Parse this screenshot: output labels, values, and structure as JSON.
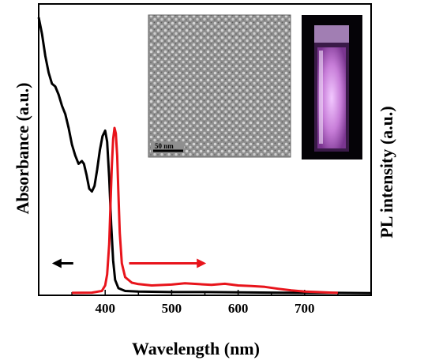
{
  "chart_data": {
    "type": "line",
    "xlabel": "Wavelength (nm)",
    "ylabel_left": "Absorbance (a.u.)",
    "ylabel_right": "PL intensity (a.u.)",
    "xlim": [
      300,
      800
    ],
    "ylim": [
      0,
      1
    ],
    "x_ticks": [
      400,
      500,
      600,
      700
    ],
    "colors": {
      "absorbance": "#000000",
      "pl": "#e8141b"
    },
    "series": [
      {
        "key": "absorbance",
        "color": "#000000",
        "points": [
          [
            300,
            1.0
          ],
          [
            305,
            0.94
          ],
          [
            310,
            0.86
          ],
          [
            315,
            0.8
          ],
          [
            320,
            0.76
          ],
          [
            325,
            0.75
          ],
          [
            330,
            0.72
          ],
          [
            335,
            0.68
          ],
          [
            340,
            0.65
          ],
          [
            345,
            0.6
          ],
          [
            350,
            0.54
          ],
          [
            355,
            0.5
          ],
          [
            360,
            0.47
          ],
          [
            365,
            0.48
          ],
          [
            368,
            0.47
          ],
          [
            372,
            0.43
          ],
          [
            376,
            0.38
          ],
          [
            380,
            0.37
          ],
          [
            384,
            0.39
          ],
          [
            388,
            0.45
          ],
          [
            392,
            0.52
          ],
          [
            396,
            0.57
          ],
          [
            400,
            0.59
          ],
          [
            403,
            0.55
          ],
          [
            406,
            0.42
          ],
          [
            409,
            0.25
          ],
          [
            412,
            0.12
          ],
          [
            415,
            0.05
          ],
          [
            420,
            0.02
          ],
          [
            430,
            0.01
          ],
          [
            450,
            0.008
          ],
          [
            500,
            0.006
          ],
          [
            550,
            0.006
          ],
          [
            600,
            0.005
          ],
          [
            650,
            0.004
          ],
          [
            700,
            0.003
          ],
          [
            750,
            0.003
          ],
          [
            800,
            0.002
          ]
        ]
      },
      {
        "key": "pl",
        "color": "#e8141b",
        "points": [
          [
            350,
            0.003
          ],
          [
            380,
            0.004
          ],
          [
            395,
            0.01
          ],
          [
            400,
            0.03
          ],
          [
            403,
            0.07
          ],
          [
            406,
            0.18
          ],
          [
            408,
            0.32
          ],
          [
            410,
            0.46
          ],
          [
            412,
            0.56
          ],
          [
            414,
            0.6
          ],
          [
            416,
            0.58
          ],
          [
            418,
            0.5
          ],
          [
            420,
            0.36
          ],
          [
            422,
            0.22
          ],
          [
            425,
            0.11
          ],
          [
            430,
            0.06
          ],
          [
            440,
            0.04
          ],
          [
            450,
            0.035
          ],
          [
            470,
            0.03
          ],
          [
            500,
            0.033
          ],
          [
            520,
            0.038
          ],
          [
            540,
            0.035
          ],
          [
            560,
            0.032
          ],
          [
            580,
            0.036
          ],
          [
            600,
            0.03
          ],
          [
            620,
            0.028
          ],
          [
            640,
            0.025
          ],
          [
            660,
            0.018
          ],
          [
            680,
            0.012
          ],
          [
            700,
            0.008
          ],
          [
            720,
            0.006
          ],
          [
            740,
            0.004
          ],
          [
            750,
            0.003
          ]
        ]
      }
    ],
    "arrows": [
      {
        "direction": "left",
        "color": "#000000",
        "x_from": 352,
        "x_to": 320,
        "y": 0.11
      },
      {
        "direction": "right",
        "color": "#e8141b",
        "x_from": 436,
        "x_to": 552,
        "y": 0.11
      }
    ],
    "insets": [
      {
        "kind": "tem-micrograph",
        "scale_bar_label": "50 nm"
      },
      {
        "kind": "cuvette-photo",
        "glow_color": "#c77dd8"
      }
    ]
  }
}
